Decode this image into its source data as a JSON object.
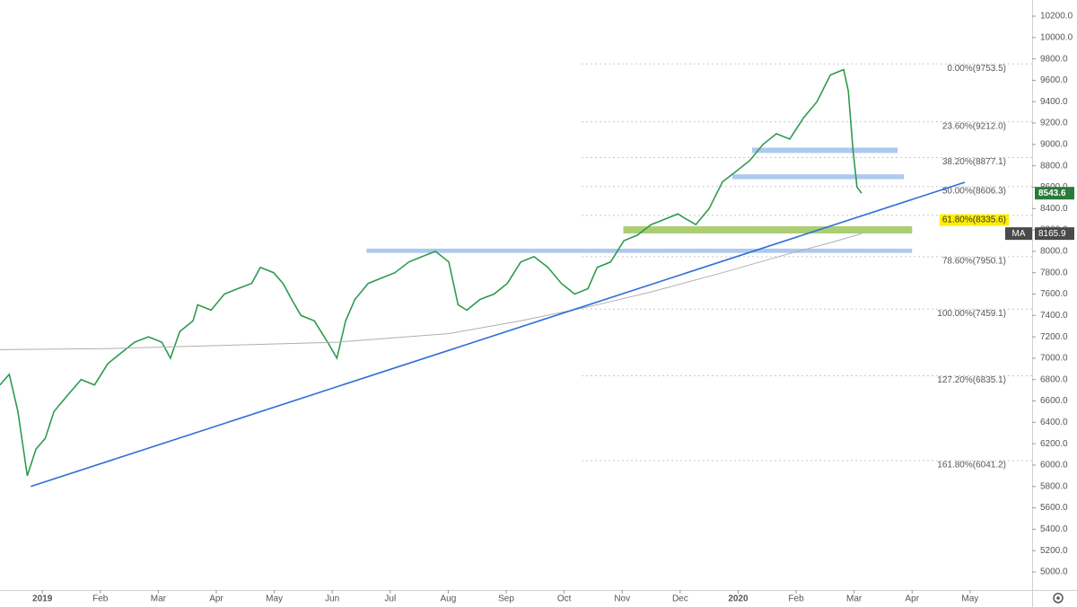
{
  "chart_data": {
    "type": "line",
    "xlim": [
      -0.73,
      17.07
    ],
    "ylim": [
      5000,
      10200
    ],
    "xticks": [
      {
        "value": 0,
        "label": "2019"
      },
      {
        "value": 1,
        "label": "Feb"
      },
      {
        "value": 2,
        "label": "Mar"
      },
      {
        "value": 3,
        "label": "Apr"
      },
      {
        "value": 4,
        "label": "May"
      },
      {
        "value": 5,
        "label": "Jun"
      },
      {
        "value": 6,
        "label": "Jul"
      },
      {
        "value": 7,
        "label": "Aug"
      },
      {
        "value": 8,
        "label": "Sep"
      },
      {
        "value": 9,
        "label": "Oct"
      },
      {
        "value": 10,
        "label": "Nov"
      },
      {
        "value": 11,
        "label": "Dec"
      },
      {
        "value": 12,
        "label": "2020"
      },
      {
        "value": 13,
        "label": "Feb"
      },
      {
        "value": 14,
        "label": "Mar"
      },
      {
        "value": 15,
        "label": "Apr"
      },
      {
        "value": 16,
        "label": "May"
      }
    ],
    "yticks": [
      {
        "value": 5000,
        "label": "5000.0"
      },
      {
        "value": 5200,
        "label": "5200.0"
      },
      {
        "value": 5400,
        "label": "5400.0"
      },
      {
        "value": 5600,
        "label": "5600.0"
      },
      {
        "value": 5800,
        "label": "5800.0"
      },
      {
        "value": 6000,
        "label": "6000.0"
      },
      {
        "value": 6200,
        "label": "6200.0"
      },
      {
        "value": 6400,
        "label": "6400.0"
      },
      {
        "value": 6600,
        "label": "6600.0"
      },
      {
        "value": 6800,
        "label": "6800.0"
      },
      {
        "value": 7000,
        "label": "7000.0"
      },
      {
        "value": 7200,
        "label": "7200.0"
      },
      {
        "value": 7400,
        "label": "7400.0"
      },
      {
        "value": 7600,
        "label": "7600.0"
      },
      {
        "value": 7800,
        "label": "7800.0"
      },
      {
        "value": 8000,
        "label": "8000.0"
      },
      {
        "value": 8200,
        "label": "8200.0"
      },
      {
        "value": 8400,
        "label": "8400.0"
      },
      {
        "value": 8600,
        "label": "8600.0"
      },
      {
        "value": 8800,
        "label": "8800.0"
      },
      {
        "value": 9000,
        "label": "9000.0"
      },
      {
        "value": 9200,
        "label": "9200.0"
      },
      {
        "value": 9400,
        "label": "9400.0"
      },
      {
        "value": 9600,
        "label": "9600.0"
      },
      {
        "value": 9800,
        "label": "9800.0"
      },
      {
        "value": 10000,
        "label": "10000.0"
      },
      {
        "value": 10200,
        "label": "10200.0"
      }
    ],
    "series": [
      {
        "color": "#2e9b4f",
        "x": [
          -0.73,
          -0.57,
          -0.42,
          -0.26,
          -0.11,
          0.05,
          0.2,
          0.43,
          0.67,
          0.9,
          1.13,
          1.36,
          1.59,
          1.83,
          2.06,
          2.21,
          2.37,
          2.6,
          2.68,
          2.91,
          3.14,
          3.37,
          3.61,
          3.76,
          3.99,
          4.15,
          4.3,
          4.46,
          4.69,
          4.92,
          5.08,
          5.23,
          5.39,
          5.62,
          5.85,
          6.08,
          6.32,
          6.55,
          6.78,
          7.01,
          7.17,
          7.32,
          7.55,
          7.79,
          8.02,
          8.25,
          8.48,
          8.72,
          8.95,
          9.18,
          9.41,
          9.57,
          9.8,
          10.03,
          10.26,
          10.5,
          10.73,
          10.96,
          11.11,
          11.27,
          11.5,
          11.73,
          11.97,
          12.2,
          12.43,
          12.66,
          12.89,
          13.13,
          13.36,
          13.59,
          13.82,
          13.9,
          13.98,
          14.05,
          14.13
        ],
        "values": [
          6750,
          6850,
          6500,
          5900,
          6150,
          6250,
          6500,
          6650,
          6800,
          6750,
          6950,
          7050,
          7150,
          7200,
          7150,
          7000,
          7250,
          7350,
          7500,
          7450,
          7600,
          7650,
          7700,
          7850,
          7800,
          7700,
          7550,
          7400,
          7350,
          7150,
          7000,
          7350,
          7550,
          7700,
          7750,
          7800,
          7900,
          7950,
          8000,
          7900,
          7500,
          7450,
          7550,
          7600,
          7700,
          7900,
          7950,
          7850,
          7700,
          7600,
          7650,
          7850,
          7900,
          8100,
          8150,
          8250,
          8300,
          8350,
          8300,
          8250,
          8400,
          8650,
          8750,
          8850,
          9000,
          9100,
          9050,
          9250,
          9400,
          9650,
          9700,
          9500,
          8950,
          8600,
          8543.6
        ]
      },
      {
        "name": "MA",
        "color": "#b0b0b0",
        "x": [
          -0.73,
          1.13,
          3.14,
          5.08,
          7.01,
          8.25,
          9.41,
          10.5,
          11.73,
          12.89,
          13.59,
          14.13
        ],
        "values": [
          7080,
          7090,
          7120,
          7150,
          7230,
          7350,
          7480,
          7620,
          7800,
          7980,
          8080,
          8165.9
        ]
      }
    ],
    "trendline": {
      "color": "#2f6fd6",
      "x": [
        -0.2,
        15.91
      ],
      "y": [
        5800,
        8646
      ]
    },
    "fib_start": 9.3,
    "fib_levels": [
      {
        "value": 9753.5,
        "label": "0.00%(9753.5)"
      },
      {
        "value": 9212.0,
        "label": "23.60%(9212.0)"
      },
      {
        "value": 8877.1,
        "label": "38.20%(8877.1)"
      },
      {
        "value": 8606.3,
        "label": "50.00%(8606.3)"
      },
      {
        "value": 8335.6,
        "label": "61.80%(8335.6)",
        "highlight": true
      },
      {
        "value": 7950.1,
        "label": "78.60%(7950.1)"
      },
      {
        "value": 7459.1,
        "label": "100.00%(7459.1)"
      },
      {
        "value": 6835.1,
        "label": "127.20%(6835.1)"
      },
      {
        "value": 6041.2,
        "label": "161.80%(6041.2)"
      }
    ],
    "zones": [
      {
        "x": [
          5.59,
          15.0
        ],
        "y": [
          7985,
          8025
        ],
        "color": "#9fc0ec"
      },
      {
        "x": [
          10.02,
          15.0
        ],
        "y": [
          8167,
          8234
        ],
        "color": "#9cc45a"
      },
      {
        "x": [
          12.24,
          14.75
        ],
        "y": [
          8920,
          8970
        ],
        "color": "#9fc0ec"
      },
      {
        "x": [
          11.9,
          14.86
        ],
        "y": [
          8675,
          8720
        ],
        "color": "#9fc0ec"
      }
    ]
  }
}
